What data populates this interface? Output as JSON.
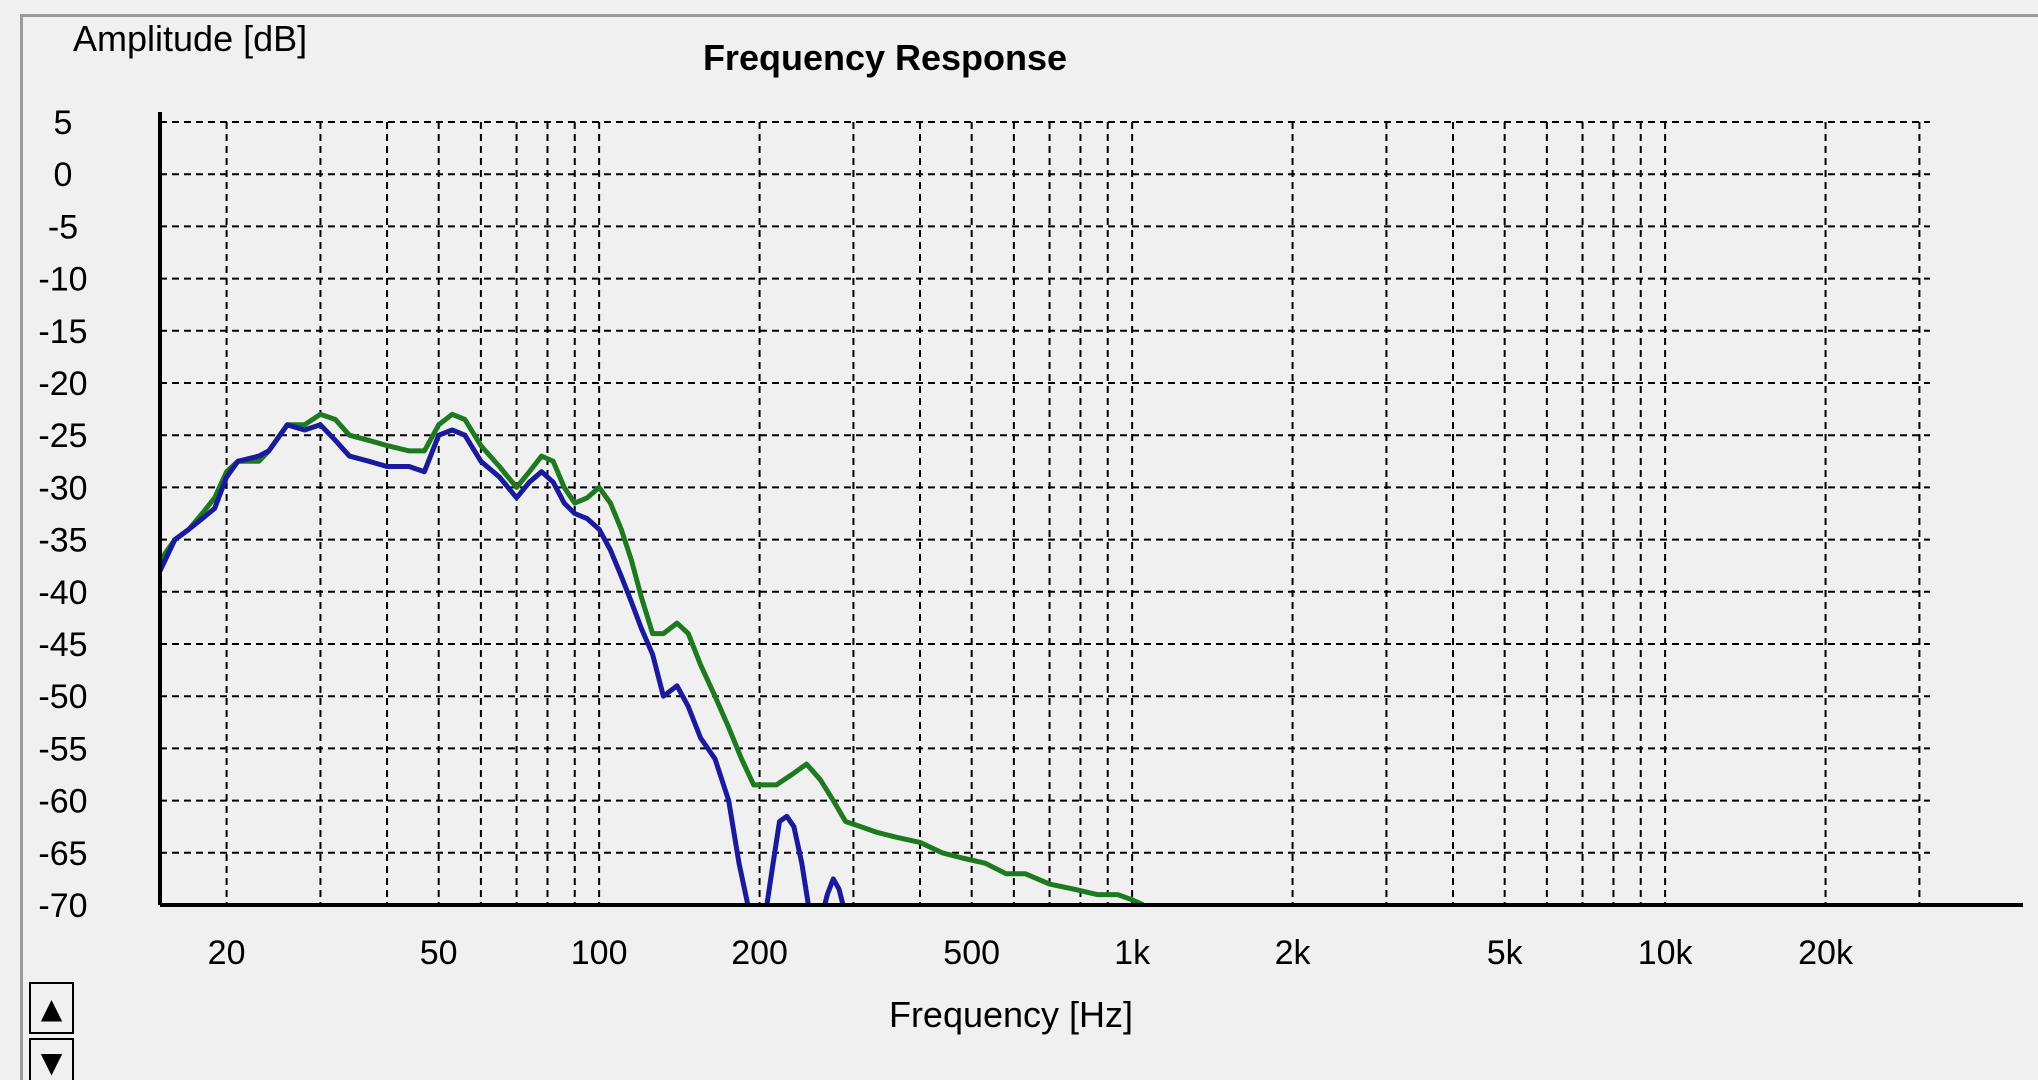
{
  "window": {
    "scroll_up_icon": "triangle-up-icon",
    "scroll_down_icon": "triangle-down-icon"
  },
  "colors": {
    "background": "#f0f0f0",
    "axis": "#000000",
    "grid": "#000000",
    "series_blue": "#1a1a9c",
    "series_green": "#1e7a1e"
  },
  "chart_data": {
    "type": "line",
    "title": "Frequency Response",
    "ylabel": "Amplitude [dB]",
    "xlabel": "Frequency [Hz]",
    "x_scale": "log",
    "xlim": [
      15,
      40000
    ],
    "ylim": [
      -70,
      5
    ],
    "grid": true,
    "y_ticks": [
      5,
      0,
      -5,
      -10,
      -15,
      -20,
      -25,
      -30,
      -35,
      -40,
      -45,
      -50,
      -55,
      -60,
      -65,
      -70
    ],
    "y_tick_labels": [
      "5",
      "0",
      "-5",
      "-10",
      "-15",
      "-20",
      "-25",
      "-30",
      "-35",
      "-40",
      "-45",
      "-50",
      "-55",
      "-60",
      "-65",
      "-70"
    ],
    "x_ticks": [
      20,
      50,
      100,
      200,
      500,
      1000,
      2000,
      5000,
      10000,
      20000
    ],
    "x_tick_labels": [
      "20",
      "50",
      "100",
      "200",
      "500",
      "1k",
      "2k",
      "5k",
      "10k",
      "20k"
    ],
    "x_grid": [
      20,
      30,
      40,
      50,
      60,
      70,
      80,
      90,
      100,
      200,
      300,
      400,
      500,
      600,
      700,
      800,
      900,
      1000,
      2000,
      3000,
      4000,
      5000,
      6000,
      7000,
      8000,
      9000,
      10000,
      20000,
      30000
    ],
    "series": [
      {
        "color": "#1e7a1e",
        "x": [
          15,
          16,
          17,
          18,
          19,
          20,
          21,
          23,
          24,
          26,
          28,
          30,
          32,
          34,
          37,
          40,
          44,
          47,
          50,
          53,
          56,
          60,
          65,
          70,
          74,
          78,
          82,
          86,
          90,
          95,
          100,
          105,
          110,
          115,
          120,
          126,
          132,
          140,
          147,
          155,
          165,
          175,
          185,
          195,
          205,
          215,
          230,
          245,
          260,
          275,
          290,
          310,
          330,
          360,
          400,
          440,
          480,
          530,
          580,
          630,
          700,
          780,
          860,
          940,
          1000,
          1050
        ],
        "y": [
          -37,
          -35,
          -34,
          -32.5,
          -31,
          -28.5,
          -27.5,
          -27.5,
          -26.5,
          -24,
          -24,
          -23,
          -23.5,
          -25,
          -25.5,
          -26,
          -26.5,
          -26.5,
          -24,
          -23,
          -23.5,
          -26,
          -28,
          -30,
          -28.5,
          -27,
          -27.5,
          -30,
          -31.5,
          -31,
          -30,
          -31.5,
          -34,
          -37,
          -40.5,
          -44,
          -44,
          -43,
          -44,
          -47,
          -50,
          -53,
          -56,
          -58.5,
          -58.5,
          -58.5,
          -57.5,
          -56.5,
          -58,
          -60,
          -62,
          -62.5,
          -63,
          -63.5,
          -64,
          -65,
          -65.5,
          -66,
          -67,
          -67,
          -68,
          -68.5,
          -69,
          -69,
          -69.5,
          -70
        ]
      },
      {
        "color": "#1a1a9c",
        "x": [
          15,
          16,
          17,
          18,
          19,
          20,
          21,
          23,
          24,
          26,
          28,
          30,
          32,
          34,
          37,
          40,
          44,
          47,
          50,
          53,
          56,
          60,
          65,
          70,
          74,
          78,
          82,
          86,
          90,
          95,
          100,
          105,
          110,
          115,
          120,
          126,
          132,
          140,
          147,
          155,
          165,
          175,
          183,
          192
        ],
        "y": [
          -38,
          -35,
          -34,
          -33,
          -32,
          -29,
          -27.5,
          -27,
          -26.5,
          -24,
          -24.5,
          -24,
          -25.5,
          -27,
          -27.5,
          -28,
          -28,
          -28.5,
          -25,
          -24.5,
          -25,
          -27.5,
          -29,
          -31,
          -29.5,
          -28.5,
          -29.5,
          -31.5,
          -32.5,
          -33,
          -34,
          -36,
          -38.5,
          -41,
          -43.5,
          -46,
          -50,
          -49,
          -51,
          -54,
          -56,
          -60,
          -66,
          -71
        ]
      },
      {
        "color": "#1a1a9c",
        "x": [
          205,
          212,
          218,
          225,
          232,
          240,
          247,
          253
        ],
        "y": [
          -71,
          -66,
          -62,
          -61.5,
          -62.5,
          -66,
          -70,
          -71
        ]
      },
      {
        "color": "#1a1a9c",
        "x": [
          262,
          268,
          275,
          282,
          290
        ],
        "y": [
          -71,
          -69,
          -67.5,
          -68.5,
          -71
        ]
      }
    ]
  }
}
